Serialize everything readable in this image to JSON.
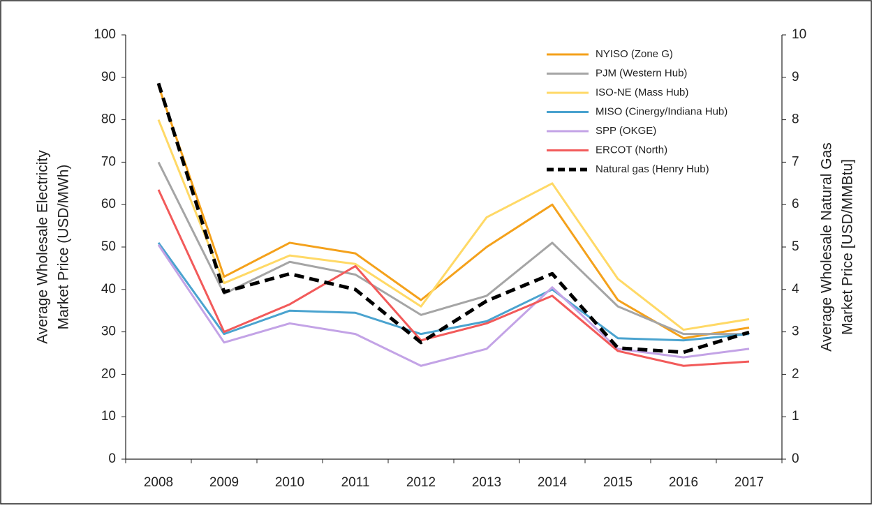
{
  "chart_data": {
    "type": "line",
    "categories": [
      "2008",
      "2009",
      "2010",
      "2011",
      "2012",
      "2013",
      "2014",
      "2015",
      "2016",
      "2017"
    ],
    "ylabel": [
      "Average Wholesale Electricity",
      "Market Price (USD/MWh)"
    ],
    "y2label": [
      "Average Wholesale Natural Gas",
      "Market Price [USD/MMBtu]"
    ],
    "ylim": [
      0,
      100
    ],
    "yticks": [
      0,
      10,
      20,
      30,
      40,
      50,
      60,
      70,
      80,
      90,
      100
    ],
    "y2lim": [
      0,
      10
    ],
    "y2ticks": [
      0,
      1,
      2,
      3,
      4,
      5,
      6,
      7,
      8,
      9,
      10
    ],
    "legend": "top-right",
    "series": [
      {
        "name": "NYISO (Zone G)",
        "color": "#f4a11b",
        "values": [
          88,
          43,
          51,
          48.5,
          37.5,
          50,
          60,
          37.5,
          28.5,
          31
        ]
      },
      {
        "name": "PJM (Western Hub)",
        "color": "#a5a5a5",
        "values": [
          70,
          39,
          46.5,
          43.5,
          34,
          38.5,
          51,
          36,
          29.5,
          29.5
        ]
      },
      {
        "name": "ISO-NE (Mass Hub)",
        "color": "#ffd966",
        "values": [
          80,
          41.5,
          48,
          46,
          36,
          57,
          65,
          42.5,
          30.5,
          33
        ]
      },
      {
        "name": "MISO (Cinergy/Indiana Hub)",
        "color": "#4aa3cf",
        "values": [
          51,
          29.5,
          35,
          34.5,
          29.5,
          32.5,
          40,
          28.5,
          28,
          29.5
        ]
      },
      {
        "name": "SPP (OKGE)",
        "color": "#c3a3e6",
        "values": [
          50.5,
          27.5,
          32,
          29.5,
          22,
          26,
          40.5,
          26,
          24,
          26
        ]
      },
      {
        "name": "ERCOT (North)",
        "color": "#f25a5a",
        "values": [
          63.5,
          30,
          36.5,
          45.5,
          28,
          32,
          38.5,
          25.5,
          22,
          23
        ]
      },
      {
        "name": "Natural gas (Henry Hub)",
        "color": "#000000",
        "dashed": true,
        "axis": "y2",
        "values": [
          8.86,
          3.94,
          4.37,
          4.0,
          2.75,
          3.73,
          4.37,
          2.62,
          2.52,
          2.99
        ]
      }
    ]
  }
}
